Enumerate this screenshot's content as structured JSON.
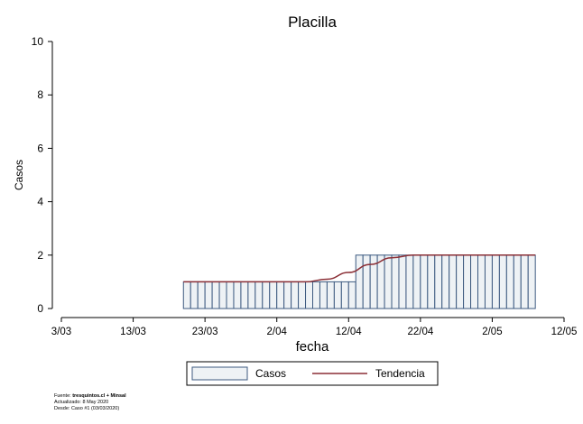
{
  "chart_data": {
    "type": "bar",
    "title": "Placilla",
    "xlabel": "fecha",
    "ylabel": "Casos",
    "ylim": [
      0,
      10
    ],
    "yticks": [
      0,
      2,
      4,
      6,
      8,
      10
    ],
    "xlim": [
      "2020-03-03",
      "2020-05-12"
    ],
    "xticks": [
      "3/03",
      "13/03",
      "23/03",
      "2/04",
      "12/04",
      "22/04",
      "2/05",
      "12/05"
    ],
    "grid": false,
    "legend_position": "bottom-center",
    "series": [
      {
        "name": "Casos",
        "kind": "bar",
        "fill": "#eef2f5",
        "stroke": "#3d5a80",
        "points": [
          {
            "start": "2020-03-20",
            "end": "2020-04-13",
            "value": 1
          },
          {
            "start": "2020-04-13",
            "end": "2020-05-08",
            "value": 2
          }
        ]
      },
      {
        "name": "Tendencia",
        "kind": "line",
        "stroke": "#8b2f36",
        "points": [
          {
            "x": "2020-03-20",
            "y": 1
          },
          {
            "x": "2020-04-06",
            "y": 1
          },
          {
            "x": "2020-04-09",
            "y": 1.1
          },
          {
            "x": "2020-04-12",
            "y": 1.35
          },
          {
            "x": "2020-04-15",
            "y": 1.65
          },
          {
            "x": "2020-04-18",
            "y": 1.9
          },
          {
            "x": "2020-04-21",
            "y": 2
          },
          {
            "x": "2020-05-08",
            "y": 2
          }
        ]
      }
    ]
  },
  "footnote": {
    "source_prefix": "Fuente: ",
    "source_bold": "tresquintos.cl + Minsal",
    "updated": "Actualizado: 8 May 2020",
    "since": "Desde: Caso #1  (03/03/2020)"
  }
}
